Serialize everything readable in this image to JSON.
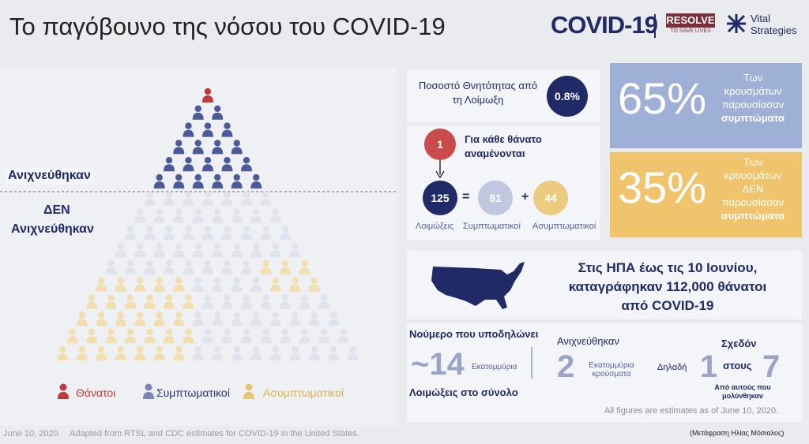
{
  "header": {
    "title": "Το παγόβουνο της νόσου του COVID-19",
    "logo_covid": "COVID-19",
    "logo_resolve": "RESOLVE",
    "logo_resolve_sub": "TO SAVE LIVES",
    "logo_vital": "Vital",
    "logo_strategies": "Strategies"
  },
  "pyramid": {
    "detected": "Ανιχνεύθηκαν",
    "not_detected": [
      "ΔΕΝ",
      "Ανιχνεύθηκαν"
    ],
    "legend": [
      "Θάνατοι",
      "Συμπτωματικοί",
      "Ασυμπτωματικοί"
    ]
  },
  "fatality": {
    "label": "Ποσοστό Θνητότητας από τη Λοίμωξη",
    "value": "0.8%"
  },
  "per_death": {
    "count": "1",
    "label": "Για κάθε θάνατο αναμένονται",
    "infections": "125",
    "equals": "=",
    "symptomatic": "81",
    "plus": "+",
    "asymptomatic": "44",
    "captions": [
      "Λοιμώξεις",
      "Συμπτωματικοί",
      "Ασυμπτωματικοί"
    ]
  },
  "symptoms": [
    {
      "percent": "65%",
      "lines": [
        "Των",
        "κρουσμάτων",
        "παρουσίασαν"
      ],
      "bold": "συμπτώματα"
    },
    {
      "percent": "35%",
      "lines": [
        "Των",
        "κρουσμάτων",
        "ΔΕΝ",
        "παρουσίασαν"
      ],
      "bold": "συμπτώματα"
    }
  ],
  "usa": {
    "lines": [
      "Στις ΗΠΑ έως τις 10 Ιουνίου,",
      "καταγράφηκαν 112,000 θάνατοι",
      "από COVID-19"
    ]
  },
  "totals": {
    "indicates": "Νούμερο που υποδηλώνει",
    "infections_value": "~14",
    "infections_unit": "Εκατομμύρια",
    "infections_caption": "Λοιμώξεις στο σύνολο",
    "detected_label": "Ανιχνεύθηκαν",
    "detected_value": "2",
    "detected_unit": "Εκατομμύρια κρούσματα",
    "that_is": "Δηλαδή",
    "almost": "Σχεδόν",
    "one": "1",
    "in": "στους",
    "seven": "7",
    "of_infected": "Από αυτούς που μολύνθηκαν",
    "note": "All figures are estimates as of June 10, 2020."
  },
  "footer": {
    "date": "June 10, 2020",
    "source": "Adapted from RTSL and CDC estimates for COVID-19 in the United States.",
    "translation": "(Μετάφραση Ηλίας Μόσιαλος)"
  }
}
